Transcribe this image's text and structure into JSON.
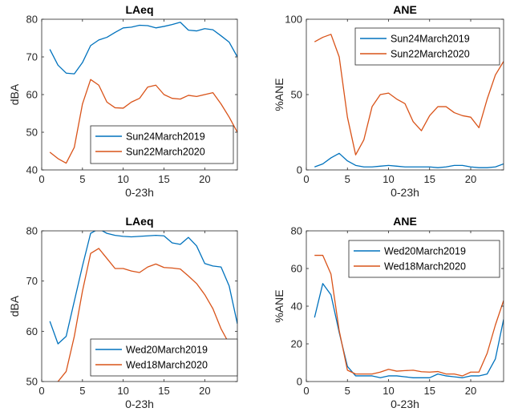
{
  "colors": {
    "series1": "#0072BD",
    "series2": "#D95319",
    "axis": "#262626"
  },
  "chart_data": [
    {
      "type": "line",
      "title": "LAeq",
      "xlabel": "0-23h",
      "ylabel": "dBA",
      "xlim": [
        0,
        24
      ],
      "ylim": [
        40,
        80
      ],
      "xticks": [
        0,
        5,
        10,
        15,
        20
      ],
      "yticks": [
        40,
        50,
        60,
        70,
        80
      ],
      "legend_position": "bottom-right",
      "x": [
        1,
        2,
        3,
        4,
        5,
        6,
        7,
        8,
        9,
        10,
        11,
        12,
        13,
        14,
        15,
        16,
        17,
        18,
        19,
        20,
        21,
        22,
        23,
        24
      ],
      "series": [
        {
          "name": "Sun24March2019",
          "values": [
            72,
            67.8,
            65.7,
            65.5,
            68.5,
            73,
            74.5,
            75.2,
            76.5,
            77.7,
            77.9,
            78.4,
            78.3,
            77.7,
            78.1,
            78.6,
            79.2,
            77.1,
            76.9,
            77.5,
            77.2,
            75.6,
            73.9,
            70
          ]
        },
        {
          "name": "Sun22March2020",
          "values": [
            44.7,
            43,
            41.8,
            46,
            57.5,
            64,
            62.5,
            58,
            56.5,
            56.4,
            58,
            59,
            62,
            62.5,
            60,
            59,
            58.8,
            59.8,
            59.5,
            60,
            60.5,
            57.5,
            54,
            50
          ]
        }
      ]
    },
    {
      "type": "line",
      "title": "ANE",
      "xlabel": "0-23h",
      "ylabel": "%ANE",
      "xlim": [
        0,
        24
      ],
      "ylim": [
        0,
        100
      ],
      "xticks": [
        0,
        5,
        10,
        15,
        20
      ],
      "yticks": [
        0,
        50,
        100
      ],
      "legend_position": "top-right",
      "x": [
        1,
        2,
        3,
        4,
        5,
        6,
        7,
        8,
        9,
        10,
        11,
        12,
        13,
        14,
        15,
        16,
        17,
        18,
        19,
        20,
        21,
        22,
        23,
        24
      ],
      "series": [
        {
          "name": "Sun24March2019",
          "values": [
            2,
            4,
            8,
            11,
            6,
            3,
            2,
            2,
            2.5,
            3,
            2.5,
            2,
            2,
            2,
            2,
            1.5,
            2,
            3,
            3,
            2,
            1.5,
            1.5,
            2,
            4
          ]
        },
        {
          "name": "Sun22March2020",
          "values": [
            85,
            88,
            90,
            75,
            35,
            10,
            20,
            42,
            50,
            51,
            47,
            44,
            32,
            26,
            36,
            42,
            42,
            38,
            36,
            35,
            28,
            47,
            63,
            72
          ]
        }
      ]
    },
    {
      "type": "line",
      "title": "LAeq",
      "xlabel": "0-23h",
      "ylabel": "dBA",
      "xlim": [
        0,
        24
      ],
      "ylim": [
        50,
        80
      ],
      "xticks": [
        0,
        5,
        10,
        15,
        20
      ],
      "yticks": [
        50,
        60,
        70,
        80
      ],
      "legend_position": "bottom-right",
      "x": [
        1,
        2,
        3,
        4,
        5,
        6,
        7,
        8,
        9,
        10,
        11,
        12,
        13,
        14,
        15,
        16,
        17,
        18,
        19,
        20,
        21,
        22,
        23,
        24
      ],
      "series": [
        {
          "name": "Wed20March2019",
          "values": [
            62,
            57.5,
            59,
            66,
            73,
            79.5,
            80.4,
            79.5,
            79.1,
            78.9,
            78.8,
            78.9,
            79,
            79.1,
            79,
            77.6,
            77.3,
            78.7,
            77,
            73.5,
            73,
            72.8,
            69,
            61.5
          ]
        },
        {
          "name": "Wed18March2020",
          "values": [
            49.5,
            50,
            52,
            59,
            68,
            75.5,
            76.5,
            74.5,
            72.5,
            72.5,
            72,
            71.7,
            72.8,
            73.4,
            72.7,
            72.6,
            72.4,
            71,
            69.5,
            67.3,
            64.5,
            60.5,
            57.5,
            54
          ]
        }
      ]
    },
    {
      "type": "line",
      "title": "ANE",
      "xlabel": "0-23h",
      "ylabel": "%ANE",
      "xlim": [
        0,
        24
      ],
      "ylim": [
        0,
        80
      ],
      "xticks": [
        0,
        5,
        10,
        15,
        20
      ],
      "yticks": [
        0,
        20,
        40,
        60,
        80
      ],
      "legend_position": "top-right",
      "x": [
        1,
        2,
        3,
        4,
        5,
        6,
        7,
        8,
        9,
        10,
        11,
        12,
        13,
        14,
        15,
        16,
        17,
        18,
        19,
        20,
        21,
        22,
        23,
        24
      ],
      "series": [
        {
          "name": "Wed20March2019",
          "values": [
            34,
            52,
            46,
            26,
            8,
            3,
            3,
            3,
            2,
            3,
            3,
            2.5,
            2,
            2,
            2,
            4,
            3,
            2.5,
            2,
            3,
            3,
            4,
            12,
            33
          ]
        },
        {
          "name": "Wed18March2020",
          "values": [
            67,
            67,
            57,
            27,
            6,
            4,
            4,
            4,
            5,
            6.5,
            5.5,
            5.8,
            6,
            5.2,
            5,
            5.3,
            4,
            4,
            3,
            5,
            5,
            15,
            30,
            43
          ]
        }
      ]
    }
  ]
}
